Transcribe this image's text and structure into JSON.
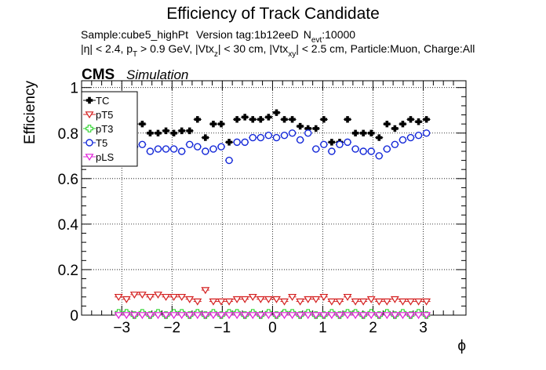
{
  "chart_data": {
    "type": "scatter",
    "title": "Efficiency of Track Candidate",
    "info_line1": {
      "sample": "Sample:cube5_highPt",
      "version": "Version tag:1b12eeD",
      "n_main": "N",
      "n_sub": "evt",
      "n_value": ":10000"
    },
    "info_line2": {
      "p1": "|η| < 2.4, p",
      "s1": "T",
      "p2": " > 0.9 GeV, |Vtx",
      "s2": "z",
      "p3": "| < 30 cm, |Vtx",
      "s3": "xy",
      "p4": "| < 2.5 cm, Particle:Muon, Charge:All"
    },
    "cms_label": "CMS",
    "simulation_label": "Simulation",
    "xlabel": "ϕ",
    "ylabel": "Efficiency",
    "xlim": [
      -3.8,
      3.85
    ],
    "ylim": [
      0,
      1.03
    ],
    "x_ticks": [
      -3,
      -2,
      -1,
      0,
      1,
      2,
      3
    ],
    "x_tick_labels": [
      "−3",
      "−2",
      "−1",
      "0",
      "1",
      "2",
      "3"
    ],
    "y_ticks": [
      0,
      0.2,
      0.4,
      0.6,
      0.8,
      1
    ],
    "y_tick_labels": [
      "0",
      "0.2",
      "0.4",
      "0.6",
      "0.8",
      "1"
    ],
    "grid": true,
    "legend_position": "top-left",
    "bin_half_width": 0.0785,
    "x": [
      -3.063,
      -2.906,
      -2.749,
      -2.592,
      -2.435,
      -2.278,
      -2.121,
      -1.964,
      -1.807,
      -1.65,
      -1.493,
      -1.336,
      -1.178,
      -1.021,
      -0.864,
      -0.707,
      -0.55,
      -0.393,
      -0.236,
      -0.079,
      0.079,
      0.236,
      0.393,
      0.55,
      0.707,
      0.864,
      1.021,
      1.178,
      1.336,
      1.493,
      1.65,
      1.807,
      1.964,
      2.121,
      2.278,
      2.435,
      2.592,
      2.749,
      2.906,
      3.063
    ],
    "series": [
      {
        "name": "TC",
        "color": "#000000",
        "marker": "filled-cross",
        "values": [
          0.86,
          0.82,
          0.84,
          0.84,
          0.8,
          0.8,
          0.81,
          0.8,
          0.81,
          0.81,
          0.86,
          0.78,
          0.84,
          0.84,
          0.76,
          0.86,
          0.87,
          0.86,
          0.86,
          0.87,
          0.89,
          0.86,
          0.86,
          0.83,
          0.82,
          0.82,
          0.86,
          0.76,
          0.76,
          0.86,
          0.8,
          0.8,
          0.8,
          0.78,
          0.84,
          0.82,
          0.84,
          0.86,
          0.85,
          0.86
        ]
      },
      {
        "name": "pT5",
        "color": "#d42020",
        "marker": "open-triangle-down",
        "values": [
          0.08,
          0.07,
          0.09,
          0.09,
          0.08,
          0.09,
          0.08,
          0.08,
          0.08,
          0.07,
          0.06,
          0.11,
          0.06,
          0.06,
          0.06,
          0.07,
          0.07,
          0.08,
          0.07,
          0.07,
          0.07,
          0.06,
          0.08,
          0.06,
          0.07,
          0.07,
          0.08,
          0.06,
          0.06,
          0.08,
          0.06,
          0.06,
          0.07,
          0.06,
          0.06,
          0.07,
          0.06,
          0.06,
          0.06,
          0.06
        ]
      },
      {
        "name": "pT3",
        "color": "#18d018",
        "marker": "open-cross",
        "values": [
          0.01,
          0.01,
          0.0,
          0.01,
          0.0,
          0.01,
          0.0,
          0.01,
          0.01,
          0.0,
          0.01,
          0.0,
          0.01,
          0.0,
          0.01,
          0.01,
          0.0,
          0.01,
          0.0,
          0.01,
          0.0,
          0.01,
          0.01,
          0.0,
          0.01,
          0.0,
          0.0,
          0.01,
          0.0,
          0.01,
          0.01,
          0.0,
          0.01,
          0.0,
          0.01,
          0.0,
          0.01,
          0.0,
          0.01,
          0.0
        ]
      },
      {
        "name": "T5",
        "color": "#1428d8",
        "marker": "open-circle",
        "values": [
          0.75,
          0.73,
          0.74,
          0.75,
          0.72,
          0.73,
          0.73,
          0.73,
          0.72,
          0.75,
          0.74,
          0.72,
          0.73,
          0.74,
          0.68,
          0.76,
          0.76,
          0.78,
          0.78,
          0.79,
          0.78,
          0.79,
          0.8,
          0.77,
          0.8,
          0.73,
          0.75,
          0.72,
          0.75,
          0.76,
          0.73,
          0.72,
          0.72,
          0.7,
          0.73,
          0.75,
          0.77,
          0.78,
          0.79,
          0.8
        ]
      },
      {
        "name": "pLS",
        "color": "#e020d8",
        "marker": "open-triangle-down",
        "values": [
          0.0,
          0.0,
          0.0,
          0.0,
          0.0,
          0.0,
          0.0,
          0.0,
          0.0,
          0.0,
          0.0,
          0.0,
          0.0,
          0.0,
          0.0,
          0.0,
          0.0,
          0.0,
          0.0,
          0.0,
          0.0,
          0.0,
          0.0,
          0.0,
          0.0,
          0.0,
          0.0,
          0.0,
          0.0,
          0.0,
          0.0,
          0.0,
          0.0,
          0.0,
          0.0,
          0.0,
          0.0,
          0.0,
          0.0,
          0.0
        ]
      }
    ]
  }
}
